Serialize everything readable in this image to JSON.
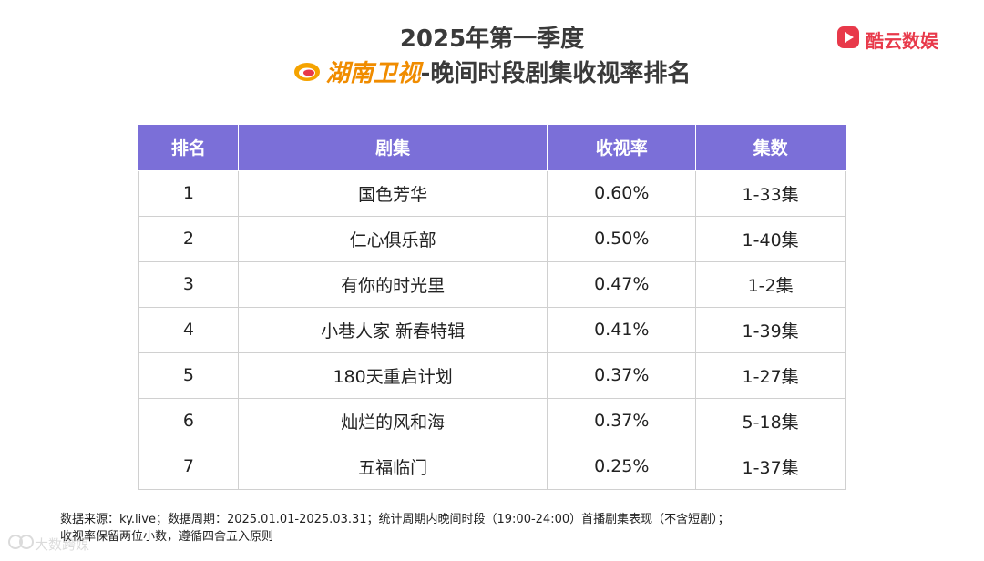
{
  "header": {
    "title_line1": "2025年第一季度",
    "tv_name": "湖南卫视",
    "title_suffix": "-晚间时段剧集收视率排名",
    "brand": "酷云数娱",
    "brand_color": "#e8394a",
    "tv_color": "#f08c00"
  },
  "table": {
    "header_color": "#7b6fd8",
    "columns": [
      "排名",
      "剧集",
      "收视率",
      "集数"
    ],
    "rows": [
      [
        "1",
        "国色芳华",
        "0.60%",
        "1-33集"
      ],
      [
        "2",
        "仁心俱乐部",
        "0.50%",
        "1-40集"
      ],
      [
        "3",
        "有你的时光里",
        "0.47%",
        "1-2集"
      ],
      [
        "4",
        "小巷人家 新春特辑",
        "0.41%",
        "1-39集"
      ],
      [
        "5",
        "180天重启计划",
        "0.37%",
        "1-27集"
      ],
      [
        "6",
        "灿烂的风和海",
        "0.37%",
        "5-18集"
      ],
      [
        "7",
        "五福临门",
        "0.25%",
        "1-37集"
      ]
    ]
  },
  "footnote": {
    "line1": "数据来源：ky.live；数据周期：2025.01.01-2025.03.31；统计周期内晚间时段（19:00-24:00）首播剧集表现（不含短剧）；",
    "line2": "收视率保留两位小数，遵循四舍五入原则"
  },
  "watermark": {
    "text": "大数跨媒"
  }
}
